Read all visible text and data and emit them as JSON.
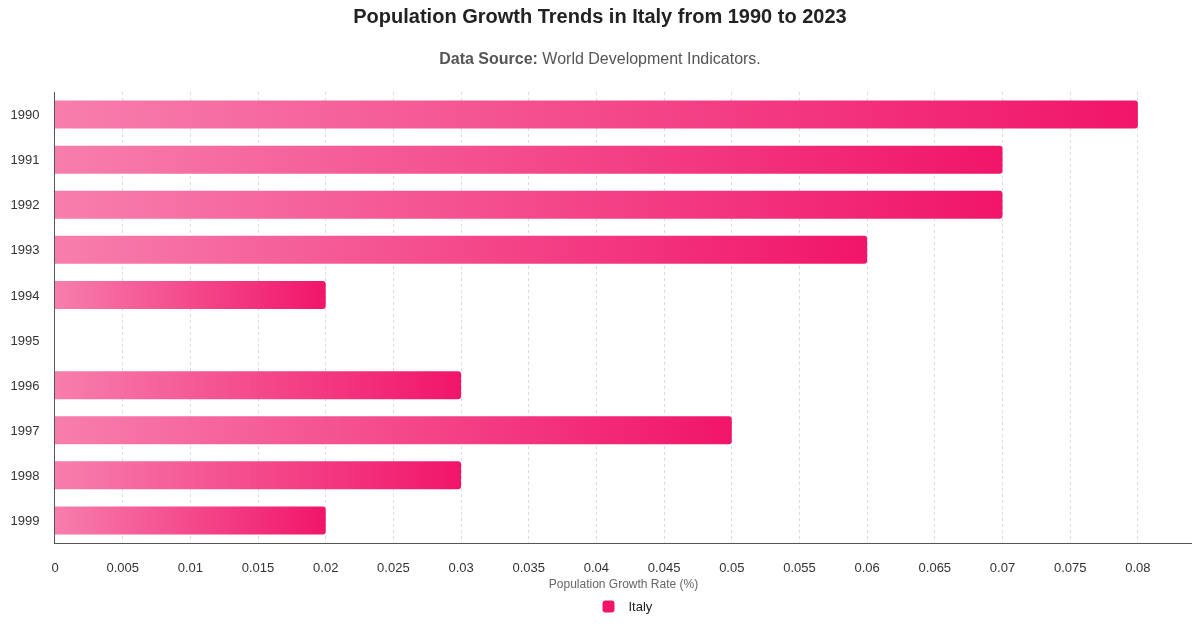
{
  "chart_data": {
    "type": "bar",
    "orientation": "horizontal",
    "title": "Population Growth Trends in Italy from 1990 to 2023",
    "subtitle": "Data Source: World Development Indicators.",
    "xlabel": "Population Growth Rate (%)",
    "categories": [
      "1990",
      "1991",
      "1992",
      "1993",
      "1994",
      "1995",
      "1996",
      "1997",
      "1998",
      "1999"
    ],
    "series": [
      {
        "name": "Italy",
        "color": "#f1156a",
        "values": [
          0.08,
          0.07,
          0.07,
          0.06,
          0.02,
          0,
          0.03,
          0.05,
          0.03,
          0.02
        ]
      }
    ],
    "xlim": [
      0,
      0.084
    ],
    "xticks": [
      0,
      0.005,
      0.01,
      0.015,
      0.02,
      0.025,
      0.03,
      0.035,
      0.04,
      0.045,
      0.05,
      0.055,
      0.06,
      0.065,
      0.07,
      0.075,
      0.08
    ],
    "grid": "x",
    "legend": "bottom"
  }
}
